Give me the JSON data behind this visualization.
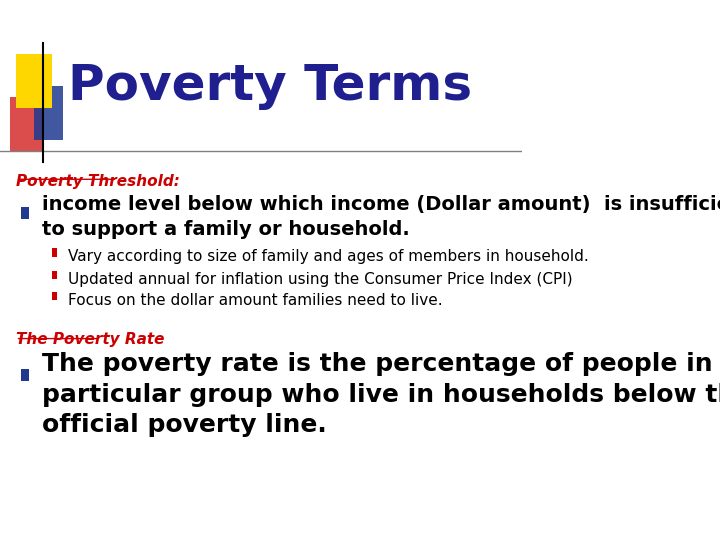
{
  "title": "Poverty Terms",
  "title_color": "#1F1F8F",
  "title_fontsize": 36,
  "bg_color": "#FFFFFF",
  "header_line_color": "#808080",
  "section1_label": "Poverty Threshold:",
  "section1_label_color": "#CC0000",
  "section1_label_fontsize": 11,
  "bullet1_text": "income level below which income (Dollar amount)  is insufficient\nto support a family or household.",
  "bullet1_fontsize": 14,
  "bullet1_color": "#000000",
  "sub_bullets": [
    "Vary according to size of family and ages of members in household.",
    "Updated annual for inflation using the Consumer Price Index (CPI)",
    "Focus on the dollar amount families need to live."
  ],
  "sub_bullet_fontsize": 11,
  "sub_bullet_color": "#000000",
  "sub_bullet_marker_color": "#CC0000",
  "section2_label": "The Poverty Rate",
  "section2_label_color": "#CC0000",
  "section2_label_fontsize": 11,
  "bullet2_text": "The poverty rate is the percentage of people in a\nparticular group who live in households below the\nofficial poverty line.",
  "bullet2_fontsize": 18,
  "bullet2_color": "#000000",
  "main_bullet_marker_color": "#1F3A8F",
  "logo_yellow_color": "#FFD700",
  "logo_red_color": "#CC0000",
  "logo_blue_color": "#1F3A8F"
}
